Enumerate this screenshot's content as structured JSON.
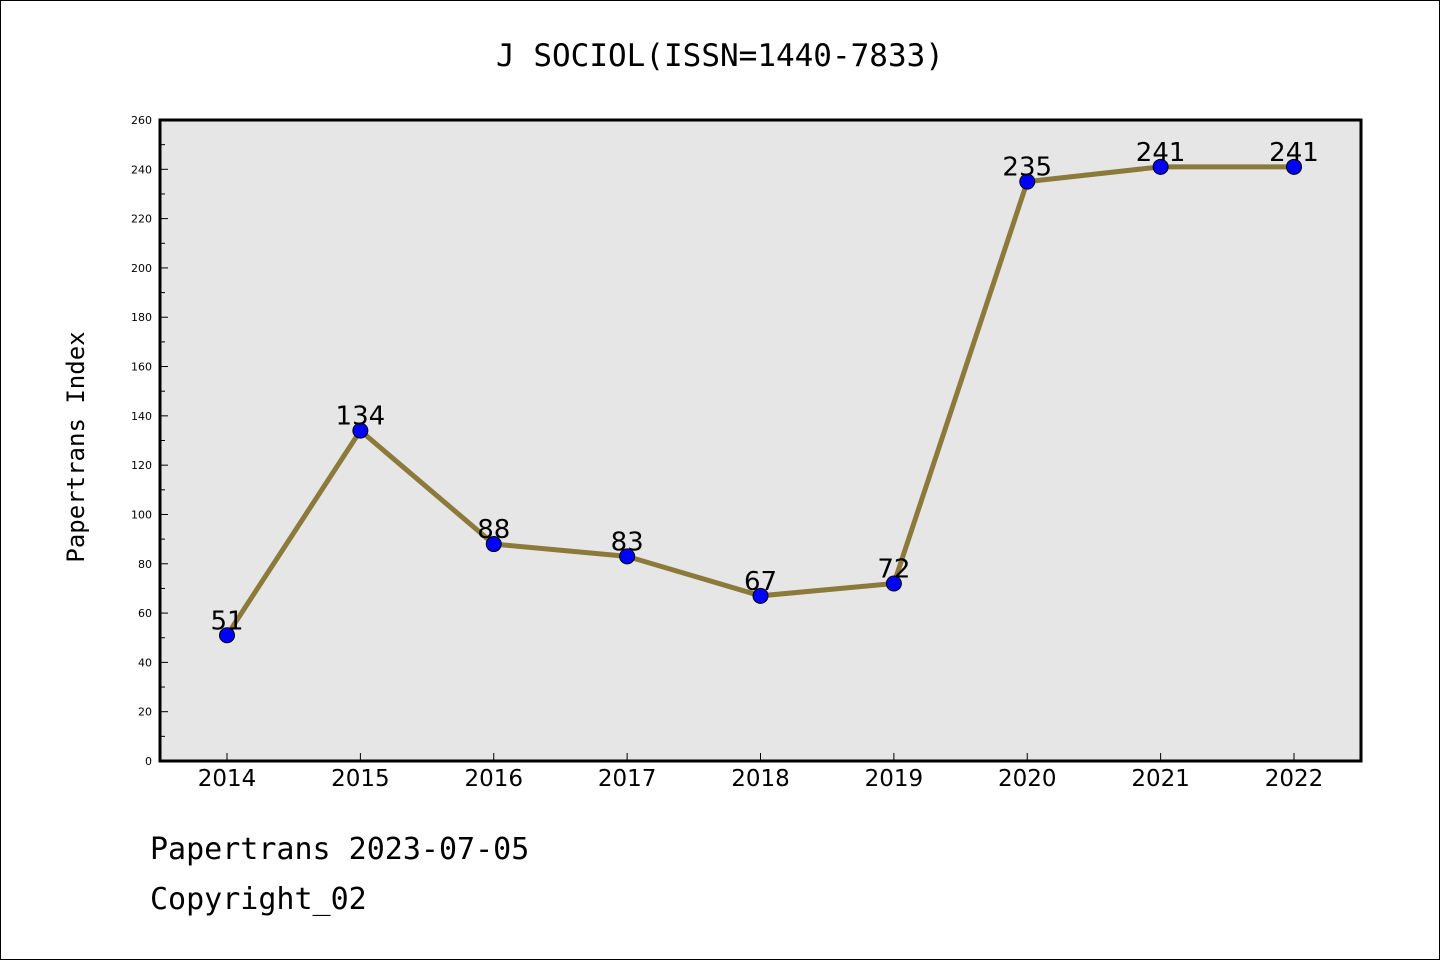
{
  "chart_data": {
    "type": "line",
    "title": "J SOCIOL(ISSN=1440-7833)",
    "xlabel": "",
    "ylabel": "Papertrans Index",
    "categories": [
      "2014",
      "2015",
      "2016",
      "2017",
      "2018",
      "2019",
      "2020",
      "2021",
      "2022"
    ],
    "values": [
      51,
      134,
      88,
      83,
      67,
      72,
      235,
      241,
      241
    ],
    "data_labels": [
      "51",
      "134",
      "88",
      "83",
      "67",
      "72",
      "235",
      "241",
      "241"
    ],
    "ylim": [
      0,
      260
    ],
    "yticks": [
      0,
      20,
      40,
      60,
      80,
      100,
      120,
      140,
      160,
      180,
      200,
      220,
      240,
      260
    ],
    "grid": false,
    "colors": {
      "line": "#8c7a3a",
      "marker": "#0000ff",
      "plot_background": "#e6e6e6"
    }
  },
  "footer": {
    "date_line": "Papertrans 2023-07-05",
    "copyright_line": "Copyright_02"
  }
}
